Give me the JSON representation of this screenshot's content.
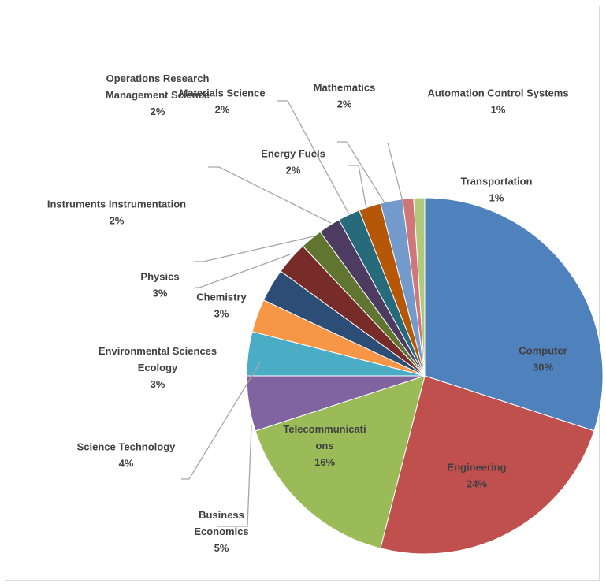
{
  "chart_data": {
    "type": "pie",
    "start_angle_deg": 0,
    "direction": "clockwise",
    "slices": [
      {
        "label": "Computer",
        "value": 30,
        "value_label": "30%",
        "color": "#4f81bd"
      },
      {
        "label": "Engineering",
        "value": 24,
        "value_label": "24%",
        "color": "#c0504d"
      },
      {
        "label": "Telecommunications",
        "label_lines": [
          "Telecommunicati",
          "ons"
        ],
        "value": 16,
        "value_label": "16%",
        "color": "#9bbb59"
      },
      {
        "label": "Business Economics",
        "label_lines": [
          "Business",
          "Economics"
        ],
        "value": 5,
        "value_label": "5%",
        "color": "#8064a2"
      },
      {
        "label": "Science Technology",
        "value": 4,
        "value_label": "4%",
        "color": "#4bacc6"
      },
      {
        "label": "Environmental Sciences Ecology",
        "label_lines": [
          "Environmental Sciences",
          "Ecology"
        ],
        "value": 3,
        "value_label": "3%",
        "color": "#f79646"
      },
      {
        "label": "Chemistry",
        "value": 3,
        "value_label": "3%",
        "color": "#2c4d75"
      },
      {
        "label": "Physics",
        "value": 3,
        "value_label": "3%",
        "color": "#772c2a"
      },
      {
        "label": "Instruments Instrumentation",
        "value": 2,
        "value_label": "2%",
        "color": "#5f7530"
      },
      {
        "label": "Operations Research Management Science",
        "label_lines": [
          "Operations Research",
          "Management Science"
        ],
        "value": 2,
        "value_label": "2%",
        "color": "#4d3b62"
      },
      {
        "label": "Materials Science",
        "value": 2,
        "value_label": "2%",
        "color": "#276a7c"
      },
      {
        "label": "Energy Fuels",
        "value": 2,
        "value_label": "2%",
        "color": "#b65708"
      },
      {
        "label": "Mathematics",
        "value": 2,
        "value_label": "2%",
        "color": "#729aca"
      },
      {
        "label": "Automation Control Systems",
        "value": 1,
        "value_label": "1%",
        "color": "#d0757a"
      },
      {
        "label": "Transportation",
        "value": 1,
        "value_label": "1%",
        "color": "#b0c97b"
      }
    ]
  }
}
